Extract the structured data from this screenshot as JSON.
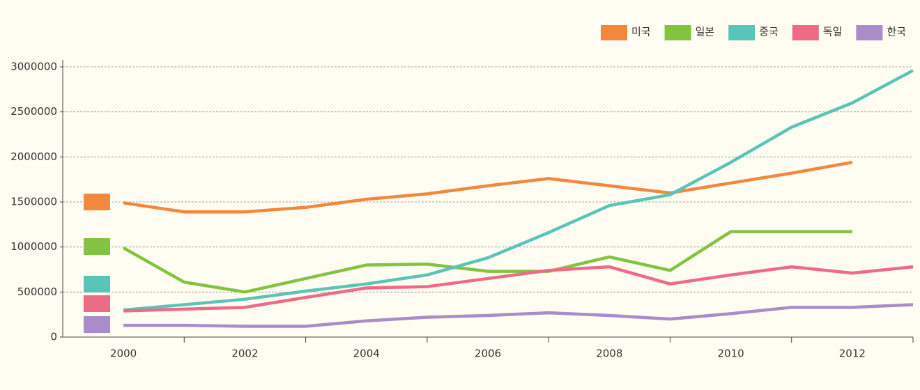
{
  "chart_data": {
    "type": "line",
    "x": [
      2000,
      2001,
      2002,
      2003,
      2004,
      2005,
      2006,
      2007,
      2008,
      2009,
      2010,
      2011,
      2012,
      2013
    ],
    "xlim": [
      1999,
      2013
    ],
    "xticks": [
      2000,
      2002,
      2004,
      2006,
      2008,
      2010,
      2012
    ],
    "xminor_ticks": [
      2001,
      2003,
      2005,
      2007,
      2009,
      2011,
      2013
    ],
    "ylim": [
      0,
      3000000
    ],
    "yticks": [
      0,
      500000,
      1000000,
      1500000,
      2000000,
      2500000,
      3000000
    ],
    "grid": true,
    "legend": "top-right",
    "series": [
      {
        "name": "미국",
        "color": "#f0883e",
        "values": [
          1490000,
          1390000,
          1390000,
          1440000,
          1530000,
          1590000,
          1680000,
          1760000,
          1680000,
          1600000,
          1710000,
          1820000,
          1940000,
          null
        ]
      },
      {
        "name": "일본",
        "color": "#82c341",
        "values": [
          990000,
          610000,
          500000,
          650000,
          800000,
          810000,
          730000,
          730000,
          890000,
          740000,
          1170000,
          1170000,
          1170000,
          null
        ]
      },
      {
        "name": "중국",
        "color": "#5bc4b8",
        "values": [
          300000,
          360000,
          420000,
          510000,
          590000,
          690000,
          880000,
          1160000,
          1460000,
          1580000,
          1940000,
          2330000,
          2600000,
          2960000
        ]
      },
      {
        "name": "독일",
        "color": "#ee6b86",
        "values": [
          290000,
          310000,
          330000,
          440000,
          545000,
          560000,
          650000,
          740000,
          780000,
          590000,
          690000,
          780000,
          710000,
          780000
        ]
      },
      {
        "name": "한국",
        "color": "#a98cc8",
        "values": [
          130000,
          130000,
          120000,
          120000,
          180000,
          220000,
          240000,
          270000,
          240000,
          200000,
          260000,
          330000,
          330000,
          360000
        ]
      }
    ]
  }
}
